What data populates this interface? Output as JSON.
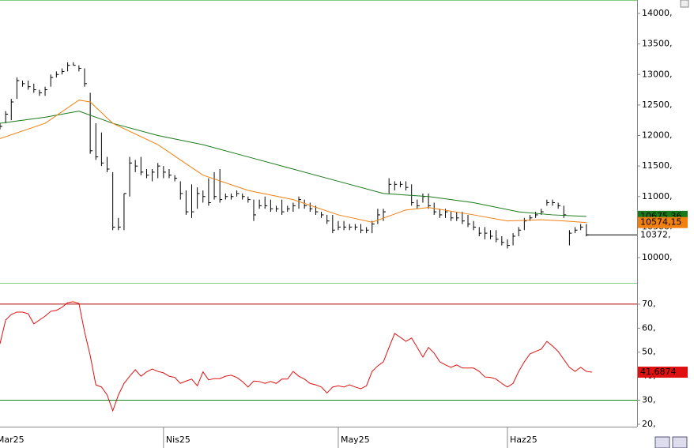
{
  "chart_data": [
    {
      "type": "ohlc",
      "color": "#000000",
      "xlim": [
        0,
        113
      ],
      "ylim": [
        9586,
        14220
      ],
      "yticks": [
        {
          "value": 10000,
          "label": "10000,"
        },
        {
          "value": 10500,
          "label": "10500,"
        },
        {
          "value": 11000,
          "label": "11000,"
        },
        {
          "value": 11500,
          "label": "11500,"
        },
        {
          "value": 12000,
          "label": "12000,"
        },
        {
          "value": 12500,
          "label": "12500,"
        },
        {
          "value": 13000,
          "label": "13000,"
        },
        {
          "value": 13500,
          "label": "13500,"
        },
        {
          "value": 14000,
          "label": "14000,"
        }
      ],
      "low": [
        12100,
        12200,
        12250,
        12600,
        12800,
        12750,
        12700,
        12650,
        12650,
        12800,
        12950,
        13000,
        13050,
        13150,
        13050,
        12800,
        11700,
        11600,
        11500,
        11400,
        10450,
        10450,
        10450,
        11000,
        11400,
        11350,
        11300,
        11250,
        11300,
        11300,
        11300,
        11250,
        10950,
        10700,
        10650,
        10800,
        10900,
        10850,
        10950,
        10900,
        10950,
        10950,
        11000,
        10950,
        10900,
        10600,
        10800,
        10800,
        10750,
        10750,
        10700,
        10750,
        10750,
        10800,
        10800,
        10750,
        10700,
        10650,
        10550,
        10400,
        10450,
        10450,
        10450,
        10450,
        10400,
        10400,
        10400,
        10550,
        10600,
        11050,
        11100,
        11150,
        11100,
        10850,
        10800,
        10900,
        10800,
        10700,
        10650,
        10650,
        10600,
        10600,
        10550,
        10500,
        10450,
        10350,
        10300,
        10300,
        10250,
        10200,
        10150,
        10200,
        10350,
        10450,
        10600,
        10650,
        10700,
        10850,
        10850,
        10800,
        10650,
        10200,
        10400,
        10450,
        10350
      ],
      "high": [
        12200,
        12400,
        12600,
        12950,
        12900,
        12900,
        12850,
        12750,
        12800,
        13000,
        13050,
        13100,
        13200,
        13200,
        13150,
        13100,
        12700,
        12200,
        12050,
        11650,
        11400,
        10650,
        11050,
        11650,
        11600,
        11650,
        11450,
        11450,
        11550,
        11500,
        11450,
        11350,
        11250,
        11100,
        11200,
        11150,
        11100,
        11300,
        11400,
        11450,
        11050,
        11050,
        11100,
        11050,
        11000,
        10950,
        10950,
        11000,
        10950,
        10850,
        10950,
        10850,
        10900,
        11000,
        10950,
        10900,
        10850,
        10750,
        10700,
        10700,
        10600,
        10600,
        10550,
        10550,
        10550,
        10500,
        10600,
        10800,
        10800,
        11300,
        11250,
        11250,
        11250,
        11200,
        10950,
        11050,
        11050,
        10900,
        10800,
        10800,
        10750,
        10750,
        10750,
        10700,
        10600,
        10500,
        10500,
        10450,
        10450,
        10350,
        10300,
        10400,
        10500,
        10650,
        10700,
        10750,
        10800,
        10950,
        10950,
        10900,
        10850,
        10450,
        10500,
        10550,
        10550
      ],
      "close": [
        12150,
        12350,
        12550,
        12900,
        12850,
        12800,
        12750,
        12700,
        12750,
        12950,
        13000,
        13050,
        13150,
        13150,
        13100,
        12850,
        11750,
        11650,
        11550,
        11450,
        10500,
        10500,
        11050,
        11550,
        11500,
        11400,
        11350,
        11400,
        11500,
        11400,
        11350,
        11300,
        11050,
        10750,
        10750,
        11050,
        11000,
        10900,
        11000,
        10950,
        11000,
        11000,
        11050,
        11000,
        10950,
        10700,
        10850,
        10850,
        10800,
        10800,
        10750,
        10800,
        10850,
        10950,
        10850,
        10800,
        10750,
        10700,
        10600,
        10450,
        10500,
        10500,
        10500,
        10500,
        10450,
        10450,
        10550,
        10700,
        10750,
        11200,
        11200,
        11200,
        11150,
        10900,
        10850,
        11000,
        10850,
        10750,
        10700,
        10750,
        10650,
        10650,
        10600,
        10550,
        10500,
        10400,
        10400,
        10350,
        10300,
        10250,
        10200,
        10350,
        10450,
        10600,
        10650,
        10700,
        10750,
        10900,
        10900,
        10850,
        10700,
        10400,
        10450,
        10500,
        10372
      ],
      "close_label": "10372,",
      "overlays": [
        {
          "color": "#1a7a1a",
          "x": [
            0,
            8,
            14,
            20,
            28,
            36,
            44,
            52,
            60,
            68,
            76,
            84,
            92,
            98,
            104
          ],
          "values": [
            12200,
            12300,
            12400,
            12200,
            12000,
            11850,
            11650,
            11450,
            11250,
            11050,
            11000,
            10900,
            10750,
            10700,
            10675.36
          ],
          "last_label": "10675,36"
        },
        {
          "color": "#f08010",
          "x": [
            0,
            8,
            14,
            16,
            20,
            28,
            36,
            44,
            52,
            60,
            66,
            72,
            76,
            84,
            90,
            96,
            100,
            104
          ],
          "values": [
            11950,
            12200,
            12580,
            12550,
            12200,
            11850,
            11350,
            11100,
            10950,
            10700,
            10580,
            10780,
            10820,
            10700,
            10600,
            10620,
            10600,
            10574.15
          ],
          "last_label": "10574,15"
        }
      ]
    },
    {
      "type": "line",
      "color": "#e01010",
      "xlim": [
        0,
        113
      ],
      "ylim": [
        19,
        78.2
      ],
      "yticks": [
        {
          "value": 20,
          "label": "20,"
        },
        {
          "value": 30,
          "label": "30,"
        },
        {
          "value": 40,
          "label": "40,"
        },
        {
          "value": 50,
          "label": "50,"
        },
        {
          "value": 60,
          "label": "60,"
        },
        {
          "value": 70,
          "label": "70,"
        }
      ],
      "xticks": [
        {
          "value": -1,
          "label": "Mar25"
        },
        {
          "value": 29,
          "label": "Nis25"
        },
        {
          "value": 60,
          "label": "May25"
        },
        {
          "value": 90,
          "label": "Haz25"
        }
      ],
      "hlines": [
        {
          "value": 70,
          "color": "#b00000"
        },
        {
          "value": 30,
          "color": "#1a8a1a"
        }
      ],
      "values": [
        53.5,
        63.4,
        65.7,
        66.7,
        66.7,
        66,
        61.8,
        63.4,
        65,
        67,
        67.4,
        68.7,
        70.6,
        71,
        70.3,
        58.5,
        48.6,
        36.4,
        35.5,
        32.2,
        25.6,
        32.2,
        37,
        40,
        42.7,
        40,
        41.8,
        43,
        42,
        41.4,
        40,
        39.5,
        37,
        38,
        38.8,
        36,
        41.8,
        38.5,
        39,
        39,
        40,
        40.4,
        39.5,
        37.8,
        35.5,
        38,
        37.8,
        37,
        37.8,
        37,
        38.8,
        38.8,
        42,
        40,
        38.8,
        37,
        36.4,
        35.5,
        33,
        35.5,
        36,
        35.5,
        36.4,
        35.5,
        34.8,
        36,
        42,
        44.3,
        46,
        52,
        57.8,
        56.2,
        54.5,
        55.9,
        52,
        48,
        52,
        49.6,
        46,
        44.7,
        43.7,
        44.7,
        43.4,
        43.4,
        43.4,
        42,
        39.7,
        39.5,
        38.8,
        37,
        35.5,
        37,
        42,
        46,
        49.3,
        50.3,
        51.3,
        54.5,
        52.6,
        50.3,
        47,
        43.7,
        42,
        43.7,
        42,
        41.6874
      ],
      "last_label": "41,6874"
    }
  ]
}
